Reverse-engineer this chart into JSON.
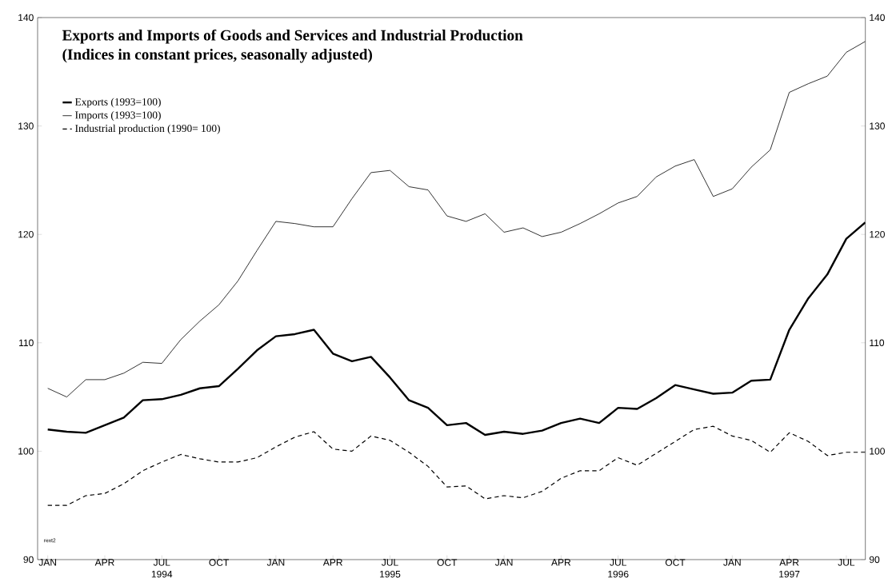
{
  "chart_data": {
    "type": "line",
    "title": "Exports and Imports of Goods and Services and Industrial Production",
    "subtitle": "(Indices in constant prices, seasonally adjusted)",
    "x": [
      "1994-01",
      "1994-02",
      "1994-03",
      "1994-04",
      "1994-05",
      "1994-06",
      "1994-07",
      "1994-08",
      "1994-09",
      "1994-10",
      "1994-11",
      "1994-12",
      "1995-01",
      "1995-02",
      "1995-03",
      "1995-04",
      "1995-05",
      "1995-06",
      "1995-07",
      "1995-08",
      "1995-09",
      "1995-10",
      "1995-11",
      "1995-12",
      "1996-01",
      "1996-02",
      "1996-03",
      "1996-04",
      "1996-05",
      "1996-06",
      "1996-07",
      "1996-08",
      "1996-09",
      "1996-10",
      "1996-11",
      "1996-12",
      "1997-01",
      "1997-02",
      "1997-03",
      "1997-04",
      "1997-05",
      "1997-06",
      "1997-07",
      "1997-08"
    ],
    "series": [
      {
        "name": "Exports (1993=100)",
        "color": "#000000",
        "line_style": "solid",
        "values": [
          102.0,
          101.8,
          101.7,
          102.4,
          103.1,
          104.7,
          104.8,
          105.2,
          105.8,
          106.0,
          107.6,
          109.3,
          110.6,
          110.8,
          111.2,
          109.0,
          108.3,
          108.7,
          106.8,
          104.7,
          104.0,
          102.4,
          102.6,
          101.5,
          101.8,
          101.6,
          101.9,
          102.6,
          103.0,
          102.6,
          104.0,
          103.9,
          104.9,
          106.1,
          105.7,
          105.3,
          105.4,
          106.5,
          106.6,
          111.2,
          114.1,
          116.3,
          119.6,
          121.1
        ]
      },
      {
        "name": "Imports (1993=100)",
        "color": "#000000",
        "line_style": "solid",
        "values": [
          105.8,
          105.0,
          106.6,
          106.6,
          107.2,
          108.2,
          108.1,
          110.3,
          112.0,
          113.5,
          115.7,
          118.5,
          121.2,
          121.0,
          120.7,
          120.7,
          123.3,
          125.7,
          125.9,
          124.4,
          124.1,
          121.7,
          121.2,
          121.9,
          120.2,
          120.6,
          119.8,
          120.2,
          121.0,
          121.9,
          122.9,
          123.5,
          125.3,
          126.3,
          126.9,
          123.5,
          124.2,
          126.2,
          127.8,
          133.1,
          133.9,
          134.6,
          136.8,
          137.8
        ]
      },
      {
        "name": "Industrial production (1990= 100)",
        "color": "#000000",
        "line_style": "dashed",
        "values": [
          95.0,
          95.0,
          95.9,
          96.1,
          97.0,
          98.2,
          99.0,
          99.7,
          99.3,
          99.0,
          99.0,
          99.4,
          100.4,
          101.3,
          101.8,
          100.2,
          100.0,
          101.4,
          101.0,
          99.9,
          98.6,
          96.7,
          96.8,
          95.6,
          95.9,
          95.7,
          96.3,
          97.5,
          98.2,
          98.2,
          99.4,
          98.7,
          99.8,
          100.9,
          102.0,
          102.3,
          101.4,
          101.0,
          99.9,
          101.7,
          100.9,
          99.6,
          99.9,
          99.9
        ]
      }
    ],
    "xlim": [
      "1993-12-15",
      "1997-08"
    ],
    "xticks": [
      {
        "value": "1994-01",
        "label": "JAN"
      },
      {
        "value": "1994-04",
        "label": "APR"
      },
      {
        "value": "1994-07",
        "label": "JUL 1994"
      },
      {
        "value": "1994-10",
        "label": "OCT"
      },
      {
        "value": "1995-01",
        "label": "JAN"
      },
      {
        "value": "1995-04",
        "label": "APR"
      },
      {
        "value": "1995-07",
        "label": "JUL 1995"
      },
      {
        "value": "1995-10",
        "label": "OCT"
      },
      {
        "value": "1996-01",
        "label": "JAN"
      },
      {
        "value": "1996-04",
        "label": "APR"
      },
      {
        "value": "1996-07",
        "label": "JUL 1996"
      },
      {
        "value": "1996-10",
        "label": "OCT"
      },
      {
        "value": "1997-01",
        "label": "JAN"
      },
      {
        "value": "1997-04",
        "label": "APR 1997"
      },
      {
        "value": "1997-07",
        "label": "JUL"
      }
    ],
    "ylim": [
      90,
      140
    ],
    "yticks": [
      90,
      100,
      110,
      120,
      130,
      140
    ],
    "y2lim": [
      90,
      140
    ],
    "y2ticks": [
      90,
      100,
      110,
      120,
      130,
      140
    ],
    "legend": "top left",
    "grid": false,
    "marker": "none",
    "annotations": [
      "rext2"
    ]
  }
}
